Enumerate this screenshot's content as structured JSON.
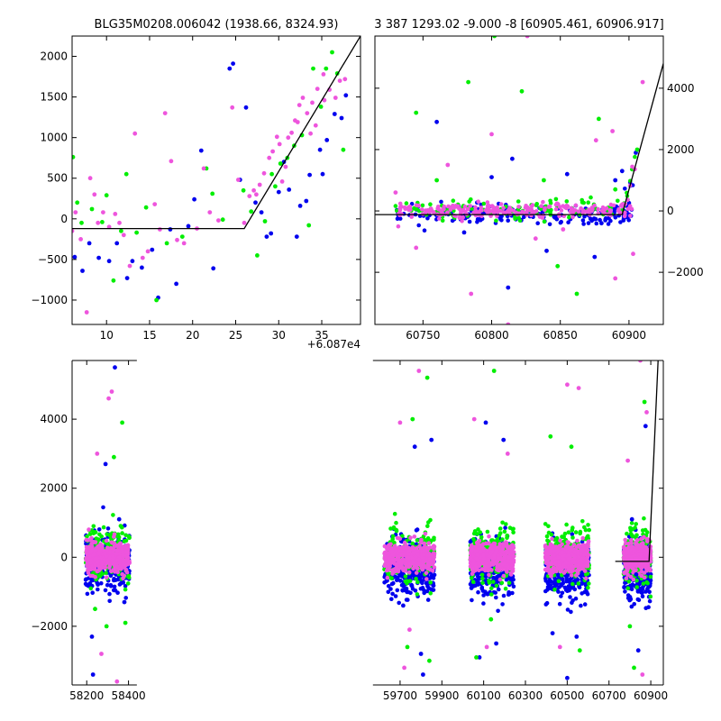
{
  "figure": {
    "title_left": "BLG35M0208.006042 (1938.66, 8324.93)",
    "title_right": "3 387 1293.02 -9.000 -8 [60905.461, 60906.917]",
    "offset_label": "+6.087e4"
  },
  "colors": {
    "series_blue": "#0000ee",
    "series_green": "#00ee00",
    "series_pink": "#ee55dd",
    "model_line": "#000000"
  },
  "chart_data": [
    {
      "type": "scatter",
      "panel": "top-left",
      "title": "BLG35M0208.006042 (1938.66, 8324.93)",
      "xlim": [
        6,
        39.5
      ],
      "ylim": [
        -1300,
        2250
      ],
      "xticks": [
        10,
        15,
        20,
        25,
        30,
        35
      ],
      "xtick_labels": [
        "10",
        "15",
        "20",
        "25",
        "30",
        "35"
      ],
      "yticks": [
        -1000,
        -500,
        0,
        500,
        1000,
        1500,
        2000
      ],
      "ytick_labels": [
        "−1000",
        "−500",
        "0",
        "500",
        "1000",
        "1500",
        "2000"
      ],
      "x_offset_label": "+6.087e4",
      "model_line": [
        [
          6,
          -120
        ],
        [
          26,
          -120
        ],
        [
          39.5,
          2250
        ]
      ],
      "series": [
        {
          "name": "blue",
          "points": [
            [
              6.3,
              -470
            ],
            [
              7.2,
              -640
            ],
            [
              8.0,
              -300
            ],
            [
              9.1,
              -480
            ],
            [
              10.3,
              -520
            ],
            [
              11.2,
              -300
            ],
            [
              12.4,
              -730
            ],
            [
              13.0,
              -520
            ],
            [
              14.1,
              -600
            ],
            [
              15.3,
              -380
            ],
            [
              16.0,
              -970
            ],
            [
              17.4,
              -130
            ],
            [
              18.1,
              -800
            ],
            [
              19.5,
              -90
            ],
            [
              20.2,
              240
            ],
            [
              21.0,
              840
            ],
            [
              22.4,
              -610
            ],
            [
              24.3,
              1850
            ],
            [
              24.7,
              1910
            ],
            [
              26.2,
              1370
            ],
            [
              27.3,
              200
            ],
            [
              28.6,
              -220
            ],
            [
              29.1,
              -180
            ],
            [
              30.0,
              330
            ],
            [
              31.2,
              360
            ],
            [
              32.5,
              160
            ],
            [
              33.6,
              540
            ],
            [
              34.8,
              850
            ],
            [
              35.6,
              970
            ],
            [
              36.5,
              1290
            ],
            [
              37.3,
              1240
            ],
            [
              37.8,
              1520
            ],
            [
              32.1,
              -220
            ],
            [
              33.2,
              220
            ],
            [
              35.1,
              550
            ],
            [
              28.0,
              80
            ],
            [
              25.5,
              480
            ],
            [
              30.6,
              700
            ]
          ]
        },
        {
          "name": "green",
          "points": [
            [
              6.1,
              760
            ],
            [
              6.6,
              200
            ],
            [
              7.1,
              -50
            ],
            [
              8.3,
              120
            ],
            [
              9.5,
              -40
            ],
            [
              10.0,
              290
            ],
            [
              10.8,
              -760
            ],
            [
              11.7,
              -150
            ],
            [
              12.3,
              550
            ],
            [
              13.5,
              -170
            ],
            [
              14.6,
              140
            ],
            [
              15.8,
              -1000
            ],
            [
              17.0,
              -300
            ],
            [
              18.8,
              -220
            ],
            [
              21.6,
              620
            ],
            [
              22.3,
              310
            ],
            [
              23.5,
              -10
            ],
            [
              26.8,
              90
            ],
            [
              27.5,
              -450
            ],
            [
              28.4,
              -30
            ],
            [
              29.6,
              400
            ],
            [
              30.2,
              680
            ],
            [
              31.0,
              750
            ],
            [
              31.8,
              900
            ],
            [
              32.7,
              1030
            ],
            [
              33.5,
              -80
            ],
            [
              34.0,
              1850
            ],
            [
              34.9,
              1380
            ],
            [
              35.5,
              1850
            ],
            [
              36.2,
              2050
            ],
            [
              36.8,
              1790
            ],
            [
              37.5,
              850
            ],
            [
              25.9,
              350
            ],
            [
              29.2,
              550
            ]
          ]
        },
        {
          "name": "pink",
          "points": [
            [
              6.0,
              -150
            ],
            [
              6.4,
              80
            ],
            [
              7.0,
              -250
            ],
            [
              7.7,
              -1150
            ],
            [
              8.1,
              500
            ],
            [
              8.6,
              300
            ],
            [
              9.0,
              -50
            ],
            [
              9.6,
              80
            ],
            [
              10.3,
              -100
            ],
            [
              11.0,
              60
            ],
            [
              11.5,
              -50
            ],
            [
              12.0,
              -200
            ],
            [
              12.7,
              -580
            ],
            [
              13.3,
              1050
            ],
            [
              14.2,
              -480
            ],
            [
              14.8,
              -400
            ],
            [
              15.6,
              180
            ],
            [
              16.2,
              -130
            ],
            [
              16.8,
              1300
            ],
            [
              17.5,
              710
            ],
            [
              18.2,
              -260
            ],
            [
              19.0,
              -300
            ],
            [
              20.5,
              -120
            ],
            [
              21.3,
              620
            ],
            [
              22.0,
              80
            ],
            [
              23.0,
              -20
            ],
            [
              24.6,
              1370
            ],
            [
              25.3,
              480
            ],
            [
              26.0,
              -50
            ],
            [
              26.6,
              280
            ],
            [
              27.1,
              350
            ],
            [
              27.8,
              420
            ],
            [
              28.3,
              560
            ],
            [
              28.9,
              750
            ],
            [
              29.3,
              830
            ],
            [
              30.1,
              920
            ],
            [
              30.8,
              640
            ],
            [
              31.5,
              1060
            ],
            [
              32.2,
              1190
            ],
            [
              32.8,
              1490
            ],
            [
              33.3,
              1300
            ],
            [
              33.9,
              1430
            ],
            [
              34.5,
              1600
            ],
            [
              35.2,
              1780
            ],
            [
              35.9,
              1590
            ],
            [
              36.6,
              1490
            ],
            [
              37.1,
              1700
            ],
            [
              37.7,
              1720
            ],
            [
              30.4,
              460
            ],
            [
              31.1,
              1000
            ],
            [
              32.4,
              1400
            ],
            [
              33.7,
              1050
            ],
            [
              34.3,
              1150
            ],
            [
              27.4,
              300
            ],
            [
              29.8,
              1010
            ],
            [
              31.9,
              1210
            ],
            [
              35.3,
              1460
            ]
          ]
        }
      ]
    },
    {
      "type": "scatter",
      "panel": "top-right",
      "title": "3 387 1293.02 -9.000 -8 [60905.461, 60906.917]",
      "xlim": [
        60715,
        60925
      ],
      "ylim": [
        -3700,
        5700
      ],
      "xticks": [
        60750,
        60800,
        60850,
        60900
      ],
      "xtick_labels": [
        "60750",
        "60800",
        "60850",
        "60900"
      ],
      "yticks": [
        -2000,
        0,
        2000,
        4000
      ],
      "ytick_labels": [
        "−2000",
        "0",
        "2000",
        "4000"
      ],
      "yaxis_side": "right",
      "model_line": [
        [
          60715,
          -120
        ],
        [
          60895,
          -120
        ],
        [
          60925,
          4800
        ]
      ],
      "outliers": [
        {
          "name": "blue",
          "points": [
            [
              60760,
              2900
            ],
            [
              60780,
              -700
            ],
            [
              60800,
              1100
            ],
            [
              60812,
              -2500
            ],
            [
              60815,
              1700
            ],
            [
              60840,
              -1300
            ],
            [
              60855,
              1200
            ],
            [
              60875,
              -1500
            ],
            [
              60880,
              -400
            ],
            [
              60890,
              1000
            ],
            [
              60895,
              1300
            ],
            [
              60905,
              1900
            ]
          ]
        },
        {
          "name": "green",
          "points": [
            [
              60745,
              3200
            ],
            [
              60760,
              1000
            ],
            [
              60783,
              4200
            ],
            [
              60802,
              5700
            ],
            [
              60822,
              3900
            ],
            [
              60838,
              1000
            ],
            [
              60848,
              -1800
            ],
            [
              60862,
              -2700
            ],
            [
              60878,
              3000
            ],
            [
              60890,
              700
            ],
            [
              60906,
              2000
            ]
          ]
        },
        {
          "name": "pink",
          "points": [
            [
              60730,
              600
            ],
            [
              60745,
              -1200
            ],
            [
              60768,
              1500
            ],
            [
              60785,
              -2700
            ],
            [
              60800,
              2500
            ],
            [
              60812,
              -3700
            ],
            [
              60826,
              5700
            ],
            [
              60832,
              -900
            ],
            [
              60852,
              -600
            ],
            [
              60876,
              2300
            ],
            [
              60890,
              -2200
            ],
            [
              60903,
              -1400
            ],
            [
              60910,
              4200
            ],
            [
              60888,
              2600
            ]
          ]
        }
      ]
    },
    {
      "type": "scatter",
      "panel": "bottom",
      "xlim": [
        58130,
        60960
      ],
      "ylim": [
        -3700,
        5700
      ],
      "xticks": [
        58200,
        58400,
        59700,
        59900,
        60100,
        60300,
        60500,
        60700,
        60900
      ],
      "xtick_labels": [
        "58200",
        "58400",
        "59700",
        "59900",
        "60100",
        "60300",
        "60500",
        "60700",
        "60900"
      ],
      "yticks": [
        -2000,
        0,
        2000,
        4000
      ],
      "ytick_labels": [
        "−2000",
        "0",
        "2000",
        "4000"
      ],
      "x_break": [
        58440,
        59570
      ],
      "seasons": [
        [
          58200,
          58400
        ],
        [
          59630,
          59860
        ],
        [
          60040,
          60240
        ],
        [
          60400,
          60600
        ],
        [
          60775,
          60895
        ]
      ],
      "model_line": [
        [
          60730,
          -120
        ],
        [
          60892,
          -120
        ],
        [
          60935,
          5700
        ]
      ],
      "outliers": [
        {
          "name": "blue",
          "points": [
            [
              58200,
              -800
            ],
            [
              58225,
              -2300
            ],
            [
              58290,
              2700
            ],
            [
              58335,
              5500
            ],
            [
              58355,
              1100
            ],
            [
              58380,
              -1300
            ],
            [
              58230,
              -3400
            ],
            [
              59715,
              -1400
            ],
            [
              59770,
              3200
            ],
            [
              59800,
              -2800
            ],
            [
              59850,
              3400
            ],
            [
              59810,
              -3400
            ],
            [
              60110,
              3900
            ],
            [
              60160,
              -2500
            ],
            [
              60195,
              3400
            ],
            [
              60080,
              -2900
            ],
            [
              60430,
              -2200
            ],
            [
              60500,
              -3500
            ],
            [
              60545,
              -2300
            ],
            [
              60810,
              1100
            ],
            [
              60875,
              3800
            ],
            [
              60840,
              -2700
            ],
            [
              60830,
              -500
            ]
          ]
        },
        {
          "name": "green",
          "points": [
            [
              58240,
              -1500
            ],
            [
              58330,
              2900
            ],
            [
              58370,
              3900
            ],
            [
              58385,
              -1900
            ],
            [
              58295,
              -2000
            ],
            [
              59760,
              4000
            ],
            [
              59830,
              5200
            ],
            [
              59840,
              -3000
            ],
            [
              59735,
              -2600
            ],
            [
              60150,
              5400
            ],
            [
              60135,
              -1800
            ],
            [
              60065,
              -2900
            ],
            [
              60420,
              3500
            ],
            [
              60520,
              3200
            ],
            [
              60560,
              -2700
            ],
            [
              60870,
              4500
            ],
            [
              60800,
              -2000
            ],
            [
              60820,
              -3200
            ]
          ]
        },
        {
          "name": "pink",
          "points": [
            [
              58250,
              3000
            ],
            [
              58305,
              4600
            ],
            [
              58320,
              4800
            ],
            [
              58270,
              -2800
            ],
            [
              58345,
              -3600
            ],
            [
              59700,
              3900
            ],
            [
              59720,
              -3200
            ],
            [
              59790,
              5400
            ],
            [
              59745,
              -2100
            ],
            [
              60055,
              4000
            ],
            [
              60115,
              -2600
            ],
            [
              60215,
              3000
            ],
            [
              60500,
              5000
            ],
            [
              60555,
              4900
            ],
            [
              60465,
              -2600
            ],
            [
              60790,
              2800
            ],
            [
              60850,
              5700
            ],
            [
              60880,
              4200
            ],
            [
              60860,
              -3400
            ]
          ]
        }
      ]
    }
  ]
}
